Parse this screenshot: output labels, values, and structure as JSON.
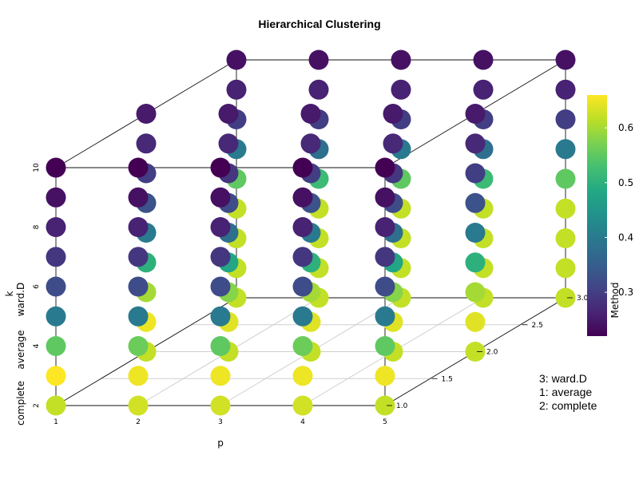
{
  "chart_data": {
    "type": "scatter3d",
    "title": "Hierarchical Clustering",
    "xlabel": "p",
    "ylabel": "k",
    "zlabel_ticks": [
      "1.0",
      "1.5",
      "2.0",
      "2.5",
      "3.0"
    ],
    "x_ticks": [
      "1",
      "2",
      "3",
      "4",
      "5"
    ],
    "y_ticks": [
      "2",
      "4",
      "6",
      "8",
      "10"
    ],
    "xlim": [
      1,
      5
    ],
    "ylim": [
      2,
      10
    ],
    "zlim": [
      1,
      3
    ],
    "colorbar": {
      "title": "Method",
      "ticks": [
        "0.3",
        "0.4",
        "0.5",
        "0.6"
      ],
      "tick_values": [
        0.3,
        0.4,
        0.5,
        0.6
      ],
      "range": [
        0.22,
        0.66
      ],
      "palette": [
        "#440154",
        "#482576",
        "#414487",
        "#35608d",
        "#2a788e",
        "#21918c",
        "#22a884",
        "#43bf71",
        "#7ad151",
        "#bddf26",
        "#fde725"
      ]
    },
    "method_labels": [
      "ward.D",
      "average",
      "complete"
    ],
    "legend": [
      "3: ward.D",
      "1: average",
      "2: complete"
    ],
    "series": [
      {
        "method": 1,
        "name": "average",
        "values": [
          [
            0.62,
            0.66,
            0.55,
            0.4,
            0.32,
            0.29,
            0.26,
            0.24,
            0.22
          ],
          [
            0.63,
            0.65,
            0.56,
            0.4,
            0.32,
            0.29,
            0.26,
            0.24,
            0.22
          ],
          [
            0.63,
            0.65,
            0.55,
            0.4,
            0.32,
            0.29,
            0.26,
            0.24,
            0.22
          ],
          [
            0.63,
            0.65,
            0.56,
            0.4,
            0.32,
            0.29,
            0.26,
            0.24,
            0.22
          ],
          [
            0.62,
            0.65,
            0.55,
            0.4,
            0.32,
            0.29,
            0.26,
            0.24,
            0.22
          ]
        ]
      },
      {
        "method": 2,
        "name": "complete",
        "values": [
          [
            0.62,
            0.65,
            0.6,
            0.5,
            0.4,
            0.33,
            0.3,
            0.27,
            0.25
          ],
          [
            0.62,
            0.64,
            0.58,
            0.48,
            0.38,
            0.32,
            0.29,
            0.27,
            0.25
          ],
          [
            0.62,
            0.64,
            0.6,
            0.5,
            0.4,
            0.33,
            0.3,
            0.27,
            0.25
          ],
          [
            0.62,
            0.64,
            0.58,
            0.48,
            0.38,
            0.32,
            0.29,
            0.27,
            0.25
          ],
          [
            0.62,
            0.64,
            0.6,
            0.5,
            0.4,
            0.33,
            0.3,
            0.27,
            0.25
          ]
        ]
      },
      {
        "method": 3,
        "name": "ward.D",
        "values": [
          [
            0.62,
            0.62,
            0.62,
            0.62,
            0.55,
            0.4,
            0.3,
            0.26,
            0.24
          ],
          [
            0.62,
            0.62,
            0.62,
            0.62,
            0.52,
            0.38,
            0.3,
            0.26,
            0.24
          ],
          [
            0.62,
            0.62,
            0.62,
            0.62,
            0.55,
            0.4,
            0.3,
            0.26,
            0.24
          ],
          [
            0.62,
            0.62,
            0.62,
            0.62,
            0.52,
            0.38,
            0.3,
            0.26,
            0.24
          ],
          [
            0.62,
            0.62,
            0.62,
            0.62,
            0.55,
            0.4,
            0.3,
            0.26,
            0.24
          ]
        ]
      }
    ]
  }
}
